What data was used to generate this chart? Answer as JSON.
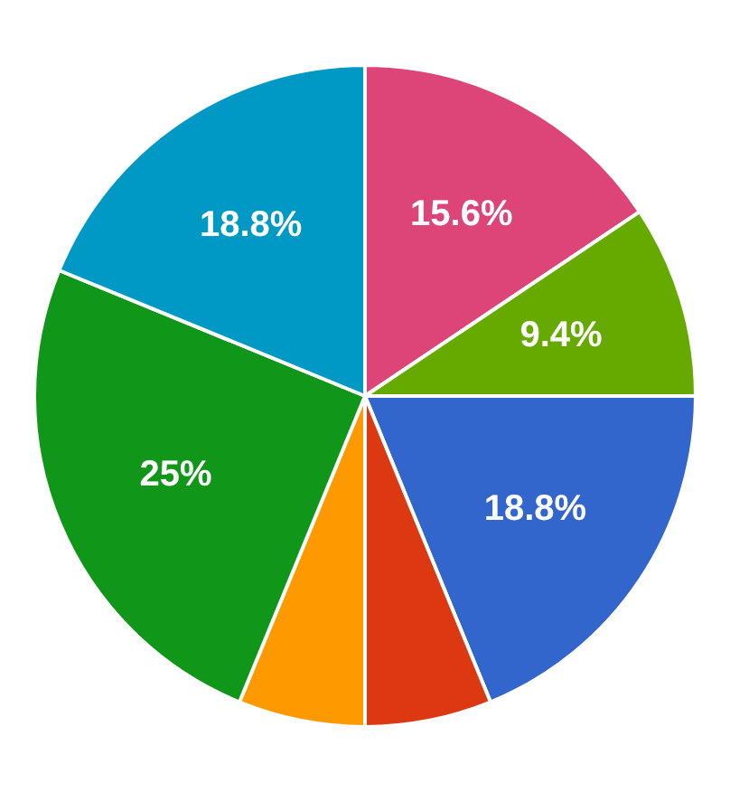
{
  "chart_data": {
    "type": "pie",
    "categories": [
      null,
      null,
      null,
      null,
      null,
      null,
      null
    ],
    "values": [
      15.6,
      9.4,
      18.8,
      6.2,
      6.2,
      25,
      18.8
    ],
    "colors": [
      "#dd4477",
      "#66aa00",
      "#3366cc",
      "#dc3912",
      "#ff9900",
      "#109618",
      "#0099c6"
    ],
    "value_labels": [
      "15.6%",
      "9.4%",
      "18.8%",
      null,
      null,
      "25%",
      "18.8%"
    ],
    "legend": false
  }
}
